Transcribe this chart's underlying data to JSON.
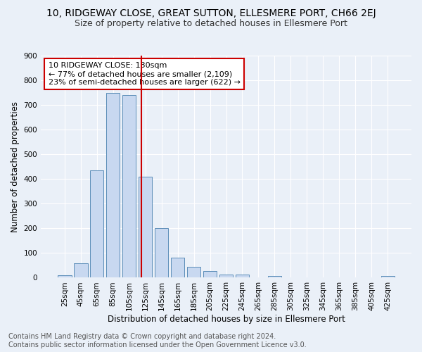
{
  "title": "10, RIDGEWAY CLOSE, GREAT SUTTON, ELLESMERE PORT, CH66 2EJ",
  "subtitle": "Size of property relative to detached houses in Ellesmere Port",
  "xlabel": "Distribution of detached houses by size in Ellesmere Port",
  "ylabel": "Number of detached properties",
  "bin_labels": [
    "25sqm",
    "45sqm",
    "65sqm",
    "85sqm",
    "105sqm",
    "125sqm",
    "145sqm",
    "165sqm",
    "185sqm",
    "205sqm",
    "225sqm",
    "245sqm",
    "265sqm",
    "285sqm",
    "305sqm",
    "325sqm",
    "345sqm",
    "365sqm",
    "385sqm",
    "405sqm",
    "425sqm"
  ],
  "bar_values": [
    10,
    58,
    435,
    750,
    740,
    410,
    200,
    80,
    43,
    27,
    13,
    13,
    0,
    7,
    0,
    0,
    0,
    0,
    0,
    0,
    7
  ],
  "bar_color": "#c8d8f0",
  "bar_edge_color": "#5b8db8",
  "vline_color": "#cc0000",
  "annotation_text": "10 RIDGEWAY CLOSE: 130sqm\n← 77% of detached houses are smaller (2,109)\n23% of semi-detached houses are larger (622) →",
  "annotation_box_color": "white",
  "annotation_box_edge": "#cc0000",
  "ylim": [
    0,
    900
  ],
  "yticks": [
    0,
    100,
    200,
    300,
    400,
    500,
    600,
    700,
    800,
    900
  ],
  "footer": "Contains HM Land Registry data © Crown copyright and database right 2024.\nContains public sector information licensed under the Open Government Licence v3.0.",
  "bg_color": "#eaf0f8",
  "grid_color": "white",
  "title_fontsize": 10,
  "subtitle_fontsize": 9,
  "axis_label_fontsize": 8.5,
  "tick_fontsize": 7.5,
  "annotation_fontsize": 8,
  "footer_fontsize": 7
}
